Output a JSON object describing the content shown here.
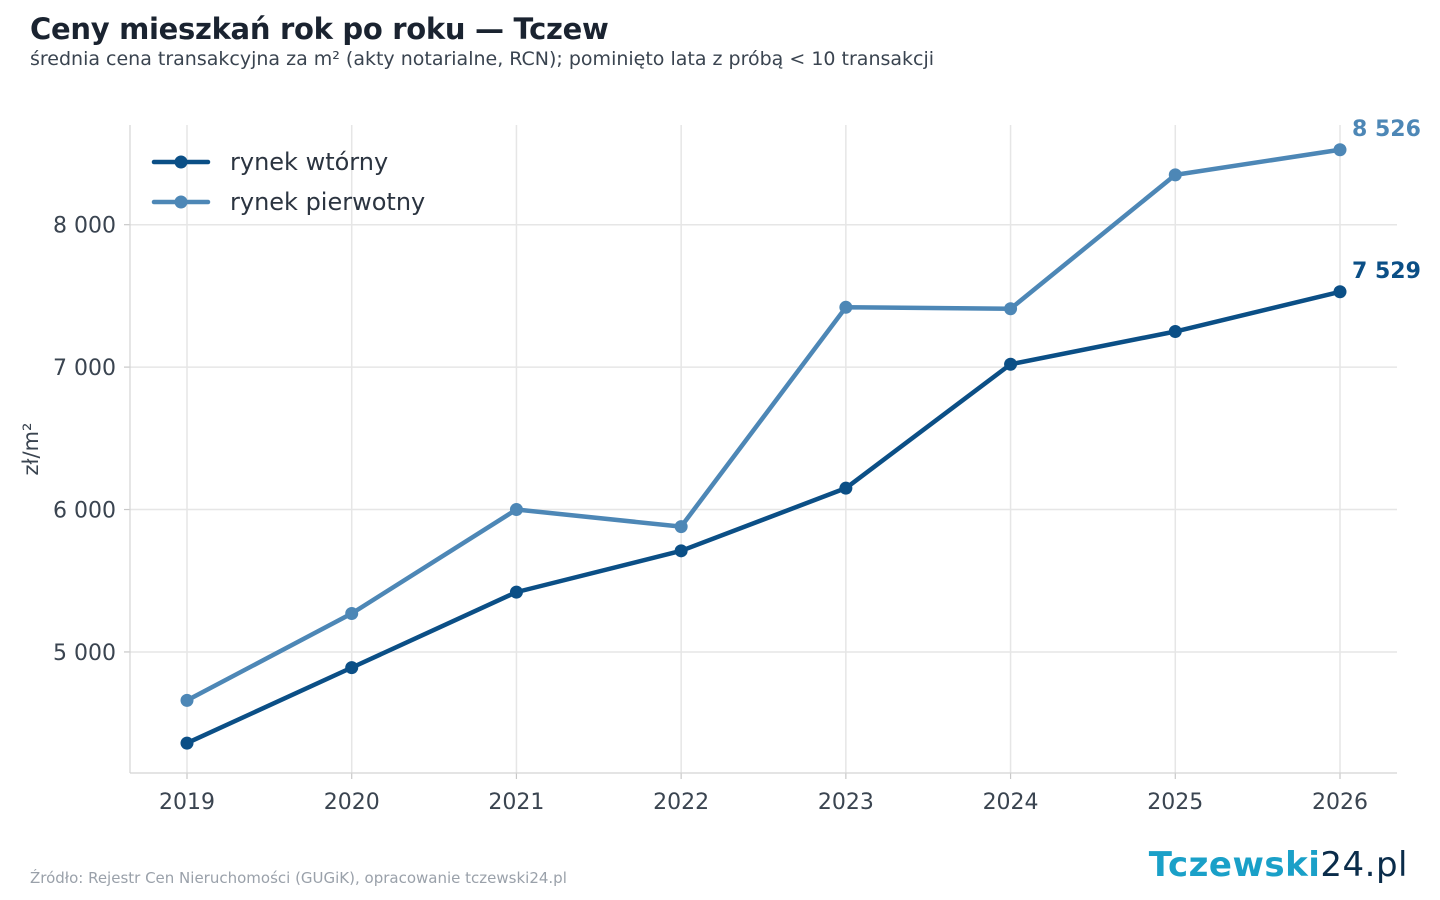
{
  "title": "Ceny mieszkań rok po roku — Tczew",
  "subtitle": "średnia cena transakcyjna za m² (akty notarialne, RCN); pominięto lata z próbą < 10 transakcji",
  "source": "Źródło: Rejestr Cen Nieruchomości (GUGiK), opracowanie tczewski24.pl",
  "logo": {
    "part1": "Tczewski",
    "part2": "24.pl"
  },
  "chart_data": {
    "type": "line",
    "title": "Ceny mieszkań rok po roku — Tczew",
    "xlabel": "",
    "ylabel": "zł/m²",
    "x": [
      "2019",
      "2020",
      "2021",
      "2022",
      "2023",
      "2024",
      "2025",
      "2026"
    ],
    "ylim": [
      4150,
      8700
    ],
    "yticks": [
      5000,
      6000,
      7000,
      8000
    ],
    "ytick_labels": [
      "5 000",
      "6 000",
      "7 000",
      "8 000"
    ],
    "grid": true,
    "legend_position": "top-left",
    "series": [
      {
        "name": "rynek wtórny",
        "color": "#0b4f86",
        "values": [
          4360,
          4890,
          5420,
          5710,
          6150,
          7020,
          7250,
          7529
        ],
        "end_label": "7 529"
      },
      {
        "name": "rynek pierwotny",
        "color": "#4d87b6",
        "values": [
          4660,
          5270,
          6000,
          5880,
          7420,
          7410,
          8350,
          8526
        ],
        "end_label": "8 526"
      }
    ]
  }
}
